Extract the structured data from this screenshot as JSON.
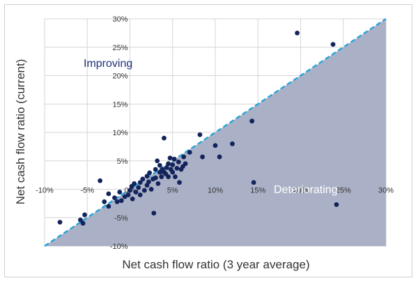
{
  "chart_data": {
    "type": "scatter",
    "xlabel": "Net cash flow ratio (3 year average)",
    "ylabel": "Net cash flow ratio (current)",
    "xlim": [
      -10,
      30
    ],
    "ylim": [
      -10,
      30
    ],
    "x_ticks": [
      "-10%",
      "-5%",
      "0%",
      "5%",
      "10%",
      "15%",
      "20%",
      "25%",
      "30%"
    ],
    "y_ticks": [
      "-10%",
      "-5%",
      "0%",
      "5%",
      "10%",
      "15%",
      "20%",
      "25%",
      "30%"
    ],
    "grid": true,
    "annotations": {
      "improving": "Improving",
      "deteriorating": "Deteriorating"
    },
    "reference_line": {
      "label": "",
      "from": [
        -10,
        -10
      ],
      "to": [
        30,
        30
      ],
      "style": "dashed"
    },
    "colors": {
      "points": "#13235b",
      "shade": "#aab1c6",
      "diagonal": "#2aa3d6",
      "improving_text": "#1f2f7a",
      "deteriorating_text": "#ffffff",
      "grid": "#d6d6d6"
    },
    "series": [
      {
        "points": [
          [
            -8.2,
            -5.8
          ],
          [
            -5.8,
            -5.4
          ],
          [
            -5.3,
            -4.5
          ],
          [
            -5.5,
            -6.0
          ],
          [
            -3.5,
            1.5
          ],
          [
            -3.0,
            -2.2
          ],
          [
            -2.5,
            -3.0
          ],
          [
            -2.5,
            -0.8
          ],
          [
            -1.8,
            -1.5
          ],
          [
            -1.5,
            -2.2
          ],
          [
            -1.2,
            -0.5
          ],
          [
            -1.0,
            -2.0
          ],
          [
            -0.6,
            -1.3
          ],
          [
            -0.2,
            -1.0
          ],
          [
            0.0,
            -0.2
          ],
          [
            0.2,
            0.5
          ],
          [
            0.3,
            -1.7
          ],
          [
            0.5,
            1.0
          ],
          [
            0.7,
            -0.5
          ],
          [
            1.0,
            0.3
          ],
          [
            1.2,
            1.2
          ],
          [
            1.2,
            -1.0
          ],
          [
            1.5,
            1.8
          ],
          [
            1.7,
            -0.2
          ],
          [
            2.0,
            2.3
          ],
          [
            2.0,
            0.7
          ],
          [
            2.2,
            1.3
          ],
          [
            2.3,
            2.9
          ],
          [
            2.5,
            0.0
          ],
          [
            2.7,
            1.8
          ],
          [
            2.8,
            -4.2
          ],
          [
            3.0,
            3.5
          ],
          [
            3.0,
            2.0
          ],
          [
            3.2,
            5.0
          ],
          [
            3.3,
            1.0
          ],
          [
            3.5,
            3.0
          ],
          [
            3.5,
            4.2
          ],
          [
            3.7,
            2.2
          ],
          [
            3.8,
            3.5
          ],
          [
            4.0,
            3.0
          ],
          [
            4.0,
            9.0
          ],
          [
            4.2,
            2.7
          ],
          [
            4.3,
            3.8
          ],
          [
            4.5,
            4.5
          ],
          [
            4.5,
            2.2
          ],
          [
            4.7,
            5.5
          ],
          [
            4.8,
            3.5
          ],
          [
            5.0,
            3.0
          ],
          [
            5.0,
            4.3
          ],
          [
            5.2,
            5.3
          ],
          [
            5.3,
            2.2
          ],
          [
            5.5,
            3.7
          ],
          [
            5.7,
            4.8
          ],
          [
            5.8,
            1.2
          ],
          [
            6.0,
            3.5
          ],
          [
            6.2,
            4.0
          ],
          [
            6.3,
            5.7
          ],
          [
            6.5,
            4.5
          ],
          [
            7.0,
            6.5
          ],
          [
            8.2,
            9.6
          ],
          [
            8.5,
            5.7
          ],
          [
            10.0,
            7.7
          ],
          [
            10.5,
            5.7
          ],
          [
            12.0,
            8.0
          ],
          [
            14.3,
            12.0
          ],
          [
            14.5,
            1.2
          ],
          [
            19.6,
            27.5
          ],
          [
            23.8,
            25.5
          ],
          [
            24.2,
            -2.7
          ]
        ]
      }
    ]
  }
}
